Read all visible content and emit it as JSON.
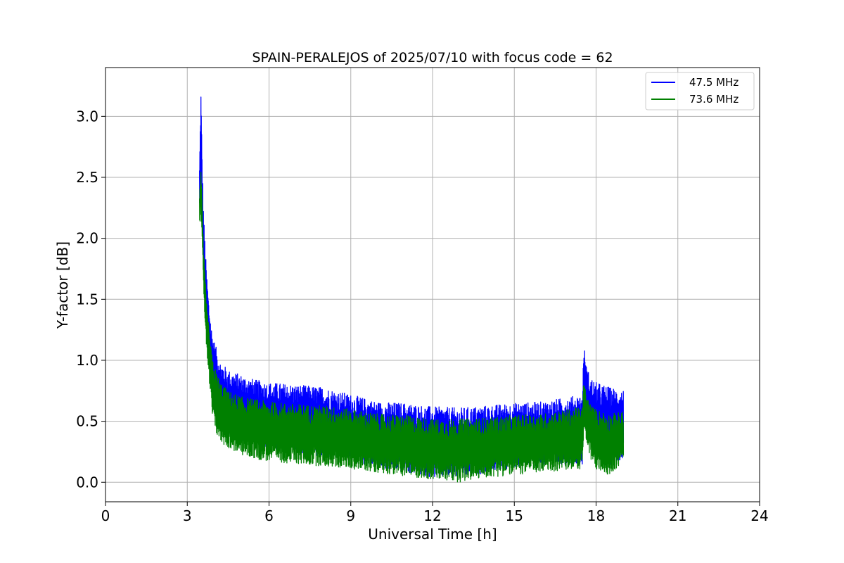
{
  "chart_data": {
    "type": "line",
    "title": "SPAIN-PERALEJOS of 2025/07/10 with focus code = 62",
    "xlabel": "Universal Time [h]",
    "ylabel": "Y-factor [dB]",
    "xlim": [
      0,
      24
    ],
    "ylim": [
      -0.16,
      3.4
    ],
    "xticks": [
      0,
      3,
      6,
      9,
      12,
      15,
      18,
      21,
      24
    ],
    "xtick_labels": [
      "0",
      "3",
      "6",
      "9",
      "12",
      "15",
      "18",
      "21",
      "24"
    ],
    "yticks": [
      0.0,
      0.5,
      1.0,
      1.5,
      2.0,
      2.5,
      3.0
    ],
    "ytick_labels": [
      "0.0",
      "0.5",
      "1.0",
      "1.5",
      "2.0",
      "2.5",
      "3.0"
    ],
    "grid": true,
    "legend_position": "top-right",
    "series": [
      {
        "name": "47.5 MHz",
        "color": "#0000ff",
        "x": [
          3.45,
          3.5,
          3.55,
          3.6,
          3.7,
          3.8,
          3.9,
          4.0,
          4.2,
          4.5,
          5.0,
          5.5,
          6.0,
          7.0,
          8.0,
          9.0,
          10.0,
          11.0,
          12.0,
          13.0,
          14.0,
          15.0,
          16.0,
          17.0,
          17.5,
          17.55,
          17.65,
          17.8,
          18.0,
          18.5,
          19.0
        ],
        "upper": [
          2.6,
          3.25,
          2.6,
          2.2,
          1.75,
          1.45,
          1.25,
          1.15,
          1.0,
          0.92,
          0.88,
          0.84,
          0.82,
          0.8,
          0.78,
          0.72,
          0.66,
          0.65,
          0.62,
          0.61,
          0.63,
          0.65,
          0.66,
          0.7,
          0.72,
          1.14,
          0.95,
          0.86,
          0.82,
          0.78,
          0.76
        ],
        "lower": [
          2.2,
          2.5,
          2.05,
          1.7,
          1.3,
          1.0,
          0.75,
          0.6,
          0.45,
          0.38,
          0.33,
          0.3,
          0.27,
          0.25,
          0.2,
          0.17,
          0.12,
          0.08,
          0.04,
          0.03,
          0.08,
          0.12,
          0.14,
          0.15,
          0.15,
          0.62,
          0.45,
          0.3,
          0.2,
          0.14,
          0.2
        ]
      },
      {
        "name": "73.6 MHz",
        "color": "#008000",
        "x": [
          3.45,
          3.5,
          3.55,
          3.6,
          3.7,
          3.8,
          3.9,
          4.0,
          4.2,
          4.5,
          5.0,
          5.5,
          6.0,
          7.0,
          8.0,
          9.0,
          10.0,
          11.0,
          12.0,
          13.0,
          14.0,
          15.0,
          16.0,
          17.0,
          17.5,
          17.55,
          17.65,
          17.8,
          18.0,
          18.5,
          19.0
        ],
        "upper": [
          2.4,
          2.6,
          2.25,
          1.9,
          1.5,
          1.25,
          1.05,
          0.95,
          0.83,
          0.75,
          0.7,
          0.68,
          0.66,
          0.64,
          0.63,
          0.6,
          0.56,
          0.55,
          0.52,
          0.52,
          0.53,
          0.55,
          0.56,
          0.6,
          0.62,
          0.84,
          0.72,
          0.64,
          0.6,
          0.56,
          0.58
        ],
        "lower": [
          2.1,
          2.25,
          1.85,
          1.5,
          1.1,
          0.8,
          0.55,
          0.42,
          0.33,
          0.28,
          0.22,
          0.19,
          0.17,
          0.15,
          0.13,
          0.11,
          0.08,
          0.05,
          0.02,
          0.0,
          0.04,
          0.06,
          0.08,
          0.1,
          0.11,
          0.45,
          0.3,
          0.18,
          0.1,
          0.06,
          0.17
        ]
      }
    ]
  }
}
